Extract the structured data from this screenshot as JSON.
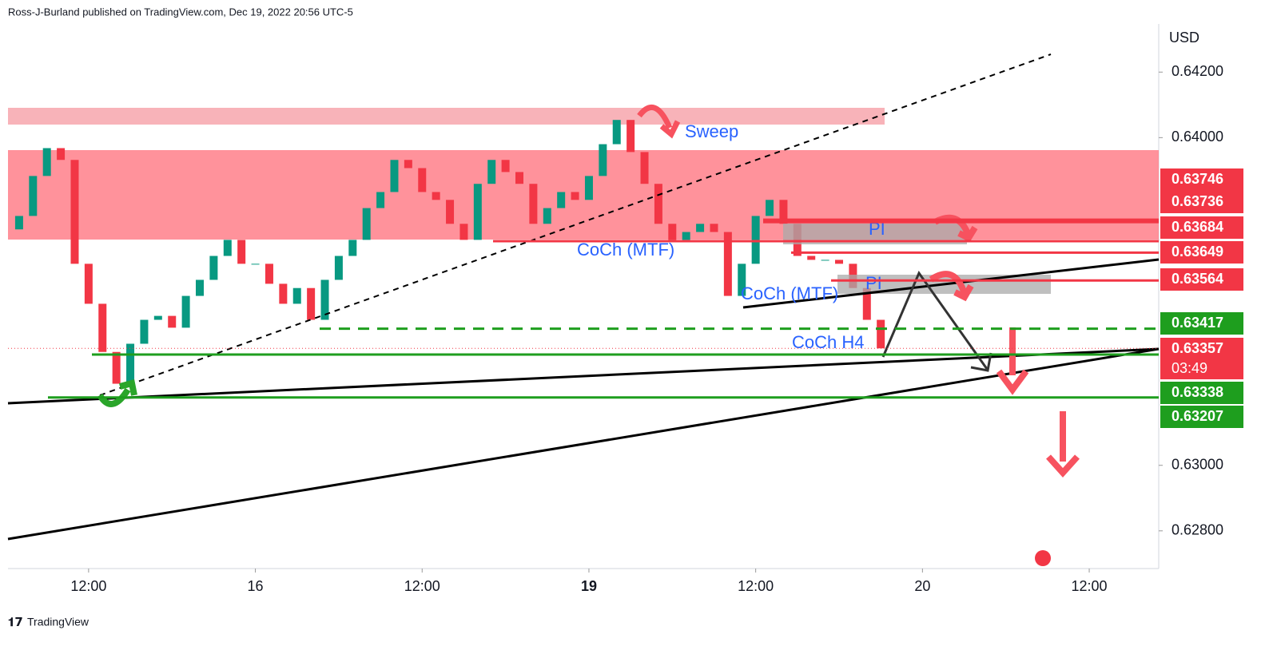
{
  "header": "Ross-J-Burland published on TradingView.com, Dec 19, 2022 20:56 UTC-5",
  "footer": "TradingView",
  "chart_data": {
    "type": "candlestick",
    "currency": "USD",
    "up_color": "#089981",
    "down_color": "#f23645",
    "xlim": [
      6.2,
      89
    ],
    "ylim": [
      0.62685,
      0.6442
    ],
    "xticks": [
      {
        "value": 12,
        "label": "12:00"
      },
      {
        "value": 24,
        "label": "16"
      },
      {
        "value": 36,
        "label": "12:00"
      },
      {
        "value": 48,
        "label": "19"
      },
      {
        "value": 60,
        "label": "12:00"
      },
      {
        "value": 72,
        "label": "20"
      },
      {
        "value": 84,
        "label": "12:00"
      }
    ],
    "yticks": [
      {
        "value": 0.642,
        "label": "0.64200"
      },
      {
        "value": 0.64,
        "label": "0.64000"
      },
      {
        "value": 0.63,
        "label": "0.63000"
      },
      {
        "value": 0.628,
        "label": "0.62800"
      }
    ],
    "x": [
      7,
      8,
      9,
      10,
      11,
      12,
      13,
      14,
      15,
      16,
      17,
      18,
      19,
      20,
      21,
      22,
      23,
      24,
      25,
      26,
      27,
      28,
      29,
      30,
      31,
      32,
      33,
      34,
      35,
      36,
      37,
      38,
      39,
      40,
      41,
      42,
      43,
      44,
      45,
      46,
      47,
      48,
      49,
      50,
      51,
      52,
      53,
      54,
      55,
      56,
      57,
      58,
      59,
      60,
      61,
      62,
      63,
      64,
      65,
      66,
      67,
      68,
      69
    ],
    "open": [
      0.6372,
      0.63761,
      0.63883,
      0.63968,
      0.63932,
      0.63615,
      0.63493,
      0.63346,
      0.63249,
      0.63371,
      0.63444,
      0.63456,
      0.6342,
      0.63517,
      0.63566,
      0.63639,
      0.63688,
      0.63615,
      0.63615,
      0.63554,
      0.63493,
      0.63541,
      0.63444,
      0.63566,
      0.63639,
      0.63688,
      0.63785,
      0.63834,
      0.63932,
      0.63907,
      0.63834,
      0.6381,
      0.63737,
      0.63688,
      0.63859,
      0.63932,
      0.63895,
      0.63859,
      0.63737,
      0.63785,
      0.63834,
      0.6381,
      0.63883,
      0.6398,
      0.64054,
      0.63956,
      0.63859,
      0.63737,
      0.63688,
      0.63712,
      0.63737,
      0.63712,
      0.63517,
      0.63615,
      0.63761,
      0.6381,
      0.63737,
      0.63639,
      0.63627,
      0.63627,
      0.63615,
      0.63541,
      0.63444
    ],
    "close": [
      0.63761,
      0.63883,
      0.63968,
      0.63932,
      0.63615,
      0.63493,
      0.63346,
      0.63249,
      0.63371,
      0.63444,
      0.63456,
      0.6342,
      0.63517,
      0.63566,
      0.63639,
      0.63688,
      0.63615,
      0.63615,
      0.63554,
      0.63493,
      0.63541,
      0.63444,
      0.63566,
      0.63639,
      0.63688,
      0.63785,
      0.63834,
      0.63932,
      0.63907,
      0.63834,
      0.6381,
      0.63737,
      0.63688,
      0.63859,
      0.63932,
      0.63895,
      0.63859,
      0.63737,
      0.63785,
      0.63834,
      0.6381,
      0.63883,
      0.6398,
      0.64054,
      0.63956,
      0.63859,
      0.63737,
      0.63688,
      0.63712,
      0.63737,
      0.63712,
      0.63517,
      0.63615,
      0.63761,
      0.6381,
      0.63737,
      0.63639,
      0.63627,
      0.63627,
      0.63615,
      0.63541,
      0.63444,
      0.63357
    ],
    "price_tags": [
      {
        "value": 0.63746,
        "color": "#f23645"
      },
      {
        "value": 0.63736,
        "color": "#f23645"
      },
      {
        "value": 0.63684,
        "color": "#f23645"
      },
      {
        "value": 0.63649,
        "color": "#f23645"
      },
      {
        "value": 0.63564,
        "color": "#f23645"
      },
      {
        "value": 0.63417,
        "color": "#1e9e1e"
      },
      {
        "value": 0.63357,
        "color": "#f23645",
        "countdown": "03:49"
      },
      {
        "value": 0.63338,
        "color": "#1e9e1e"
      },
      {
        "value": 0.63207,
        "color": "#1e9e1e"
      }
    ],
    "annotations": [
      "Sweep",
      "CoCh (MTF)",
      "CoCh (MTF)",
      "PI",
      "PI",
      "CoCh H4"
    ]
  }
}
